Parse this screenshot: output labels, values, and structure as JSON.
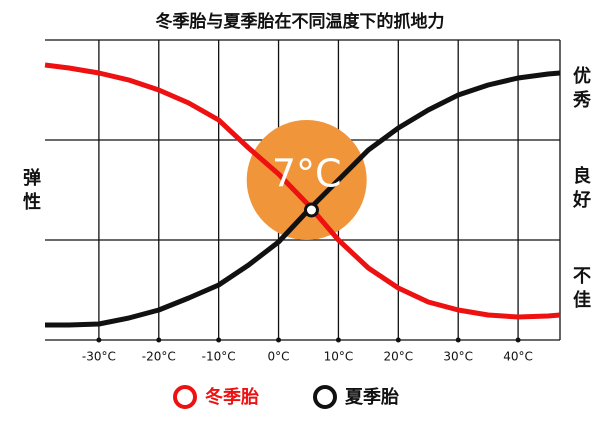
{
  "chart_data": {
    "type": "line",
    "title": "冬季胎与夏季胎在不同温度下的抓地力",
    "y_label": "弹性",
    "x": [
      -39,
      -35,
      -30,
      -25,
      -20,
      -15,
      -10,
      -5,
      0,
      5,
      10,
      15,
      20,
      25,
      30,
      35,
      40,
      45,
      47
    ],
    "series": [
      {
        "name": "冬季胎",
        "color": "#ee1111",
        "values": [
          2.75,
          2.72,
          2.67,
          2.6,
          2.5,
          2.37,
          2.2,
          1.92,
          1.66,
          1.35,
          1.0,
          0.72,
          0.52,
          0.38,
          0.3,
          0.25,
          0.23,
          0.24,
          0.25
        ]
      },
      {
        "name": "夏季胎",
        "color": "#111111",
        "values": [
          0.15,
          0.15,
          0.16,
          0.22,
          0.3,
          0.42,
          0.55,
          0.75,
          0.98,
          1.3,
          1.6,
          1.9,
          2.12,
          2.3,
          2.45,
          2.55,
          2.62,
          2.66,
          2.67
        ]
      }
    ],
    "xlim": [
      -39,
      47
    ],
    "ylim": [
      0,
      3
    ],
    "xticks": [
      {
        "value": -30,
        "label": "-30°C"
      },
      {
        "value": -20,
        "label": "-20°C"
      },
      {
        "value": -10,
        "label": "-10°C"
      },
      {
        "value": 0,
        "label": "0°C"
      },
      {
        "value": 10,
        "label": "10°C"
      },
      {
        "value": 20,
        "label": "20°C"
      },
      {
        "value": 30,
        "label": "30°C"
      },
      {
        "value": 40,
        "label": "40°C"
      }
    ],
    "yticks": [
      {
        "value": 0.5,
        "label": "不佳"
      },
      {
        "value": 1.5,
        "label": "良好"
      },
      {
        "value": 2.5,
        "label": "优秀"
      }
    ],
    "ygrid": [
      1,
      2
    ],
    "grid": true,
    "annotation": {
      "text": "7°C",
      "x": 4.7,
      "y": 1.6,
      "point_x": 5.5,
      "point_y": 1.3,
      "color": "#f0953a"
    }
  }
}
